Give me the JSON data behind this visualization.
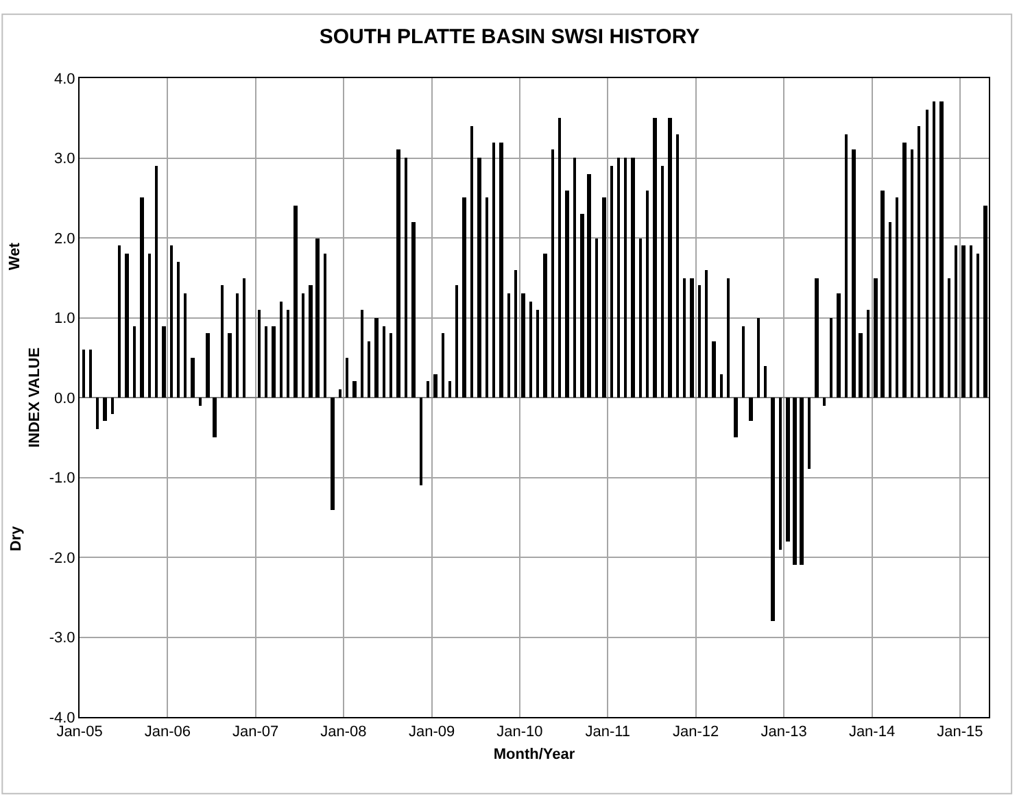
{
  "chart_data": {
    "type": "bar",
    "title": "SOUTH PLATTE BASIN SWSI HISTORY",
    "xlabel": "Month/Year",
    "ylabel": "INDEX VALUE",
    "annotations": [
      "Wet",
      "Dry"
    ],
    "x": [
      "2005-01",
      "2005-02",
      "2005-03",
      "2005-04",
      "2005-05",
      "2005-06",
      "2005-07",
      "2005-08",
      "2005-09",
      "2005-10",
      "2005-11",
      "2005-12",
      "2006-01",
      "2006-02",
      "2006-03",
      "2006-04",
      "2006-05",
      "2006-06",
      "2006-07",
      "2006-08",
      "2006-09",
      "2006-10",
      "2006-11",
      "2006-12",
      "2007-01",
      "2007-02",
      "2007-03",
      "2007-04",
      "2007-05",
      "2007-06",
      "2007-07",
      "2007-08",
      "2007-09",
      "2007-10",
      "2007-11",
      "2007-12",
      "2008-01",
      "2008-02",
      "2008-03",
      "2008-04",
      "2008-05",
      "2008-06",
      "2008-07",
      "2008-08",
      "2008-09",
      "2008-10",
      "2008-11",
      "2008-12",
      "2009-01",
      "2009-02",
      "2009-03",
      "2009-04",
      "2009-05",
      "2009-06",
      "2009-07",
      "2009-08",
      "2009-09",
      "2009-10",
      "2009-11",
      "2009-12",
      "2010-01",
      "2010-02",
      "2010-03",
      "2010-04",
      "2010-05",
      "2010-06",
      "2010-07",
      "2010-08",
      "2010-09",
      "2010-10",
      "2010-11",
      "2010-12",
      "2011-01",
      "2011-02",
      "2011-03",
      "2011-04",
      "2011-05",
      "2011-06",
      "2011-07",
      "2011-08",
      "2011-09",
      "2011-10",
      "2011-11",
      "2011-12",
      "2012-01",
      "2012-02",
      "2012-03",
      "2012-04",
      "2012-05",
      "2012-06",
      "2012-07",
      "2012-08",
      "2012-09",
      "2012-10",
      "2012-11",
      "2012-12",
      "2013-01",
      "2013-02",
      "2013-03",
      "2013-04",
      "2013-05",
      "2013-06",
      "2013-07",
      "2013-08",
      "2013-09",
      "2013-10",
      "2013-11",
      "2013-12",
      "2014-01",
      "2014-02",
      "2014-03",
      "2014-04",
      "2014-05",
      "2014-06",
      "2014-07",
      "2014-08",
      "2014-09",
      "2014-10",
      "2014-11",
      "2014-12",
      "2015-01",
      "2015-02",
      "2015-03",
      "2015-04"
    ],
    "series": [
      {
        "color": "#000000",
        "values": [
          0.6,
          0.6,
          -0.4,
          -0.3,
          -0.2,
          1.9,
          1.8,
          0.9,
          2.5,
          1.8,
          2.9,
          0.9,
          1.9,
          1.7,
          1.3,
          0.5,
          -0.1,
          0.8,
          -0.5,
          1.4,
          0.8,
          1.3,
          1.5,
          null,
          1.1,
          0.9,
          0.9,
          1.2,
          1.1,
          2.4,
          1.3,
          1.4,
          2.0,
          1.8,
          -1.4,
          0.1,
          0.5,
          0.2,
          1.1,
          0.7,
          1.0,
          0.9,
          0.8,
          3.1,
          3.0,
          2.2,
          -1.1,
          0.2,
          0.3,
          0.8,
          0.2,
          1.4,
          2.5,
          3.4,
          3.0,
          2.5,
          3.2,
          3.2,
          1.3,
          1.6,
          1.3,
          1.2,
          1.1,
          1.8,
          3.1,
          3.5,
          2.6,
          3.0,
          2.3,
          2.8,
          2.0,
          2.5,
          2.9,
          3.0,
          3.0,
          3.0,
          2.0,
          2.6,
          3.5,
          2.9,
          3.5,
          3.3,
          1.5,
          1.5,
          1.4,
          1.6,
          0.7,
          0.3,
          1.5,
          -0.5,
          0.9,
          -0.3,
          1.0,
          0.4,
          -2.8,
          -1.9,
          -1.8,
          -2.1,
          -2.1,
          -0.9,
          1.5,
          -0.1,
          1.0,
          1.3,
          3.3,
          3.1,
          0.8,
          1.1,
          1.5,
          2.6,
          2.2,
          2.5,
          3.2,
          3.1,
          3.4,
          3.6,
          3.7,
          3.7,
          1.5,
          1.9,
          1.9,
          1.9,
          1.8,
          2.4
        ]
      }
    ],
    "xlim": [
      "2005-01-01",
      "2015-05-01"
    ],
    "xticks": [
      {
        "value": "2005-01-01",
        "label": "Jan-05"
      },
      {
        "value": "2006-01-01",
        "label": "Jan-06"
      },
      {
        "value": "2007-01-01",
        "label": "Jan-07"
      },
      {
        "value": "2008-01-01",
        "label": "Jan-08"
      },
      {
        "value": "2009-01-01",
        "label": "Jan-09"
      },
      {
        "value": "2010-01-01",
        "label": "Jan-10"
      },
      {
        "value": "2011-01-01",
        "label": "Jan-11"
      },
      {
        "value": "2012-01-01",
        "label": "Jan-12"
      },
      {
        "value": "2013-01-01",
        "label": "Jan-13"
      },
      {
        "value": "2014-01-01",
        "label": "Jan-14"
      },
      {
        "value": "2015-01-01",
        "label": "Jan-15"
      }
    ],
    "ylim": [
      -4,
      4
    ],
    "yticks": [
      {
        "value": -4,
        "label": "-4.0"
      },
      {
        "value": -3,
        "label": "-3.0"
      },
      {
        "value": -2,
        "label": "-2.0"
      },
      {
        "value": -1,
        "label": "-1.0"
      },
      {
        "value": 0,
        "label": "0.0"
      },
      {
        "value": 1,
        "label": "1.0"
      },
      {
        "value": 2,
        "label": "2.0"
      },
      {
        "value": 3,
        "label": "3.0"
      },
      {
        "value": 4,
        "label": "4.0"
      }
    ],
    "grid": true
  }
}
